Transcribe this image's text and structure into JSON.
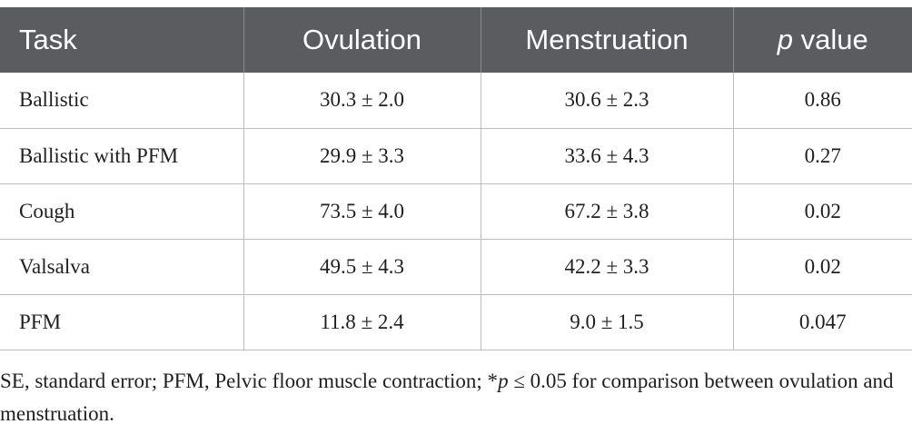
{
  "table": {
    "headers": {
      "task": "Task",
      "ovulation": "Ovulation",
      "menstruation": "Menstruation",
      "p_value_italic": "p",
      "p_value_rest": " value"
    },
    "rows": [
      {
        "task": "Ballistic",
        "ovulation": "30.3 ± 2.0",
        "menstruation": "30.6 ± 2.3",
        "p": "0.86"
      },
      {
        "task": "Ballistic with PFM",
        "ovulation": "29.9 ± 3.3",
        "menstruation": "33.6 ± 4.3",
        "p": "0.27"
      },
      {
        "task": "Cough",
        "ovulation": "73.5 ± 4.0",
        "menstruation": "67.2 ± 3.8",
        "p": "0.02"
      },
      {
        "task": "Valsalva",
        "ovulation": "49.5 ± 4.3",
        "menstruation": "42.2 ± 3.3",
        "p": "0.02"
      },
      {
        "task": "PFM",
        "ovulation": "11.8 ± 2.4",
        "menstruation": "9.0 ± 1.5",
        "p": "0.047"
      }
    ]
  },
  "footnote": {
    "part1": "SE, standard error; PFM, Pelvic floor muscle contraction; *",
    "p_italic": "p",
    "part2": " ≤ 0.05 for comparison between ovulation and menstruation."
  }
}
